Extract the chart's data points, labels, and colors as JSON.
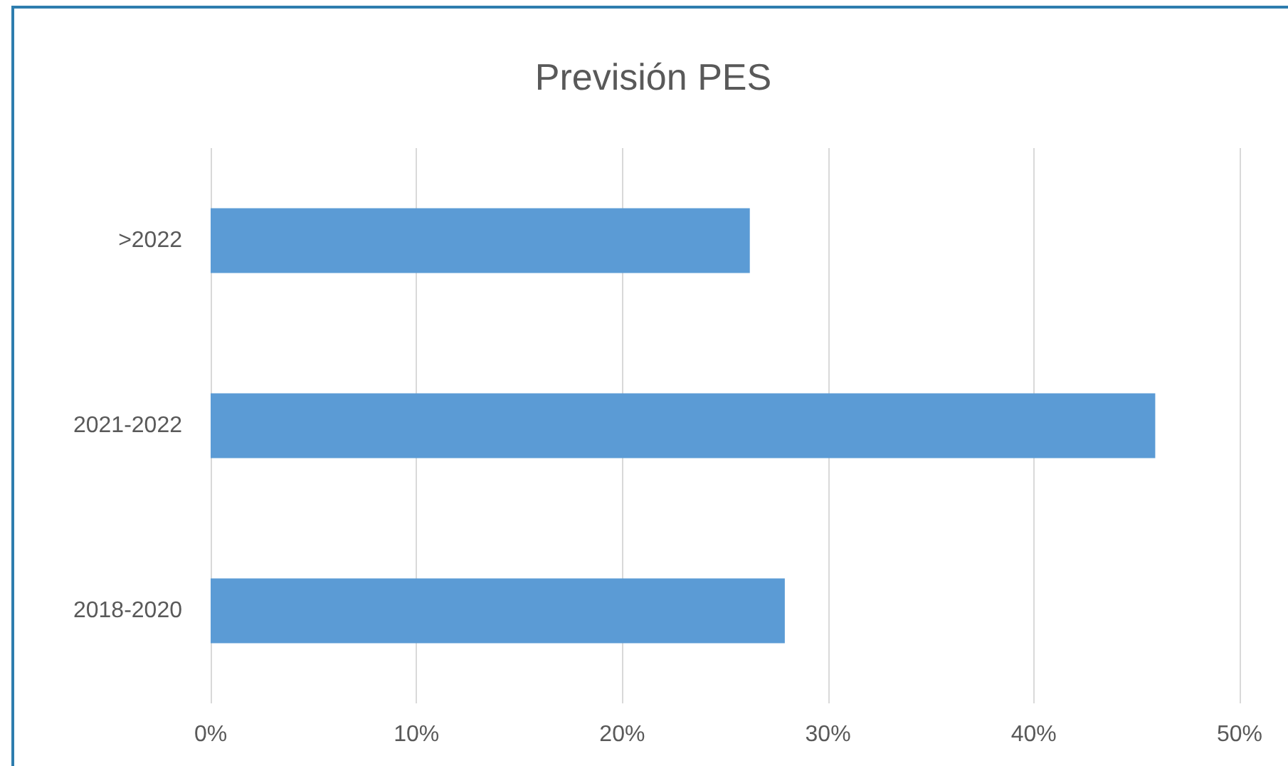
{
  "chart_data": {
    "type": "bar",
    "title": "Previsión PES",
    "orientation": "horizontal",
    "categories": [
      ">2022",
      "2021-2022",
      "2018-2020"
    ],
    "values": [
      26.2,
      45.9,
      27.9
    ],
    "color": "#5b9bd5",
    "xlim": [
      0,
      50
    ],
    "xticks": [
      {
        "value": 0,
        "label": "0%"
      },
      {
        "value": 10,
        "label": "10%"
      },
      {
        "value": 20,
        "label": "20%"
      },
      {
        "value": 30,
        "label": "30%"
      },
      {
        "value": 40,
        "label": "40%"
      },
      {
        "value": 50,
        "label": "50%"
      }
    ],
    "grid": "x"
  }
}
